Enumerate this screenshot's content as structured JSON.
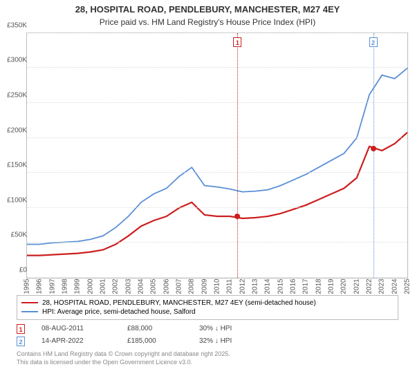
{
  "title_line1": "28, HOSPITAL ROAD, PENDLEBURY, MANCHESTER, M27 4EY",
  "title_line2": "Price paid vs. HM Land Registry's House Price Index (HPI)",
  "chart": {
    "type": "line",
    "background_color": "#ffffff",
    "grid_color": "#e0e0e0",
    "ylim": [
      0,
      350000
    ],
    "ytick_step": 50000,
    "yticks": [
      "£0",
      "£50K",
      "£100K",
      "£150K",
      "£200K",
      "£250K",
      "£300K",
      "£350K"
    ],
    "x_years": [
      1995,
      1996,
      1997,
      1998,
      1999,
      2000,
      2001,
      2002,
      2003,
      2004,
      2005,
      2006,
      2007,
      2008,
      2009,
      2010,
      2011,
      2012,
      2013,
      2014,
      2015,
      2016,
      2017,
      2018,
      2019,
      2020,
      2021,
      2022,
      2023,
      2024,
      2025
    ],
    "series": [
      {
        "key": "hpi",
        "color": "#5b8fd6",
        "width": 1.8,
        "values": [
          48,
          48,
          50,
          51,
          52,
          55,
          60,
          72,
          88,
          108,
          120,
          128,
          145,
          158,
          132,
          130,
          127,
          123,
          124,
          126,
          132,
          140,
          148,
          158,
          168,
          178,
          200,
          262,
          290,
          285,
          300
        ]
      },
      {
        "key": "property",
        "color": "#cc1e1e",
        "width": 2.2,
        "values": [
          32,
          32,
          33,
          34,
          35,
          37,
          40,
          48,
          60,
          74,
          82,
          88,
          100,
          108,
          90,
          88,
          88,
          85,
          86,
          88,
          92,
          98,
          104,
          112,
          120,
          128,
          143,
          188,
          182,
          192,
          208
        ]
      }
    ],
    "markers": [
      {
        "num": "1",
        "year": 2011.6,
        "color": "#cc1e1e",
        "point_y": 88
      },
      {
        "num": "2",
        "year": 2022.3,
        "color": "#5b8fd6",
        "point_y": 185
      }
    ]
  },
  "legend": {
    "items": [
      {
        "color": "#cc1e1e",
        "label": "28, HOSPITAL ROAD, PENDLEBURY, MANCHESTER, M27 4EY (semi-detached house)"
      },
      {
        "color": "#5b8fd6",
        "label": "HPI: Average price, semi-detached house, Salford"
      }
    ]
  },
  "transactions": [
    {
      "num": "1",
      "color": "#cc1e1e",
      "date": "08-AUG-2011",
      "price": "£88,000",
      "delta": "30% ↓ HPI"
    },
    {
      "num": "2",
      "color": "#5b8fd6",
      "date": "14-APR-2022",
      "price": "£185,000",
      "delta": "32% ↓ HPI"
    }
  ],
  "footer": {
    "line1": "Contains HM Land Registry data © Crown copyright and database right 2025.",
    "line2": "This data is licensed under the Open Government Licence v3.0."
  }
}
